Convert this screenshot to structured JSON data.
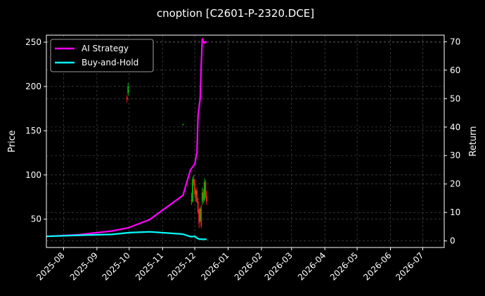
{
  "chart_data": {
    "type": "line",
    "title": "cnoption [C2601-P-2320.DCE]",
    "ylabel": "Price",
    "ylabel_right": "Return",
    "x_ticks": [
      "2025-08",
      "2025-09",
      "2025-10",
      "2025-11",
      "2025-12",
      "2026-01",
      "2026-02",
      "2026-03",
      "2026-04",
      "2026-05",
      "2026-06",
      "2026-07"
    ],
    "x_range": [
      "2025-07-16",
      "2026-07-21"
    ],
    "ylim_left": [
      18,
      258
    ],
    "y_ticks_left": [
      50,
      100,
      150,
      200,
      250
    ],
    "ylim_right": [
      -2.3,
      72.3
    ],
    "y_ticks_right": [
      0,
      10,
      20,
      30,
      40,
      50,
      60,
      70
    ],
    "grid": true,
    "legend_position": "top-left",
    "colors": {
      "up": "#00c000",
      "down": "#ff2020",
      "ai": "#ff00ff",
      "bh": "#00ffff",
      "grid": "#555555"
    },
    "series": [
      {
        "name": "AI Strategy",
        "axis": "right",
        "color": "#ff00ff",
        "points": [
          [
            "2025-07-16",
            1.6
          ],
          [
            "2025-08-15",
            2.2
          ],
          [
            "2025-09-15",
            3.5
          ],
          [
            "2025-09-30",
            4.6
          ],
          [
            "2025-10-20",
            7.5
          ],
          [
            "2025-11-20",
            16.0
          ],
          [
            "2025-11-27",
            25.0
          ],
          [
            "2025-12-01",
            27.0
          ],
          [
            "2025-12-03",
            31.0
          ],
          [
            "2025-12-04",
            44.0
          ],
          [
            "2025-12-06",
            50.0
          ],
          [
            "2025-12-07",
            62.0
          ],
          [
            "2025-12-08",
            71.0
          ],
          [
            "2025-12-09",
            70.0
          ],
          [
            "2025-12-10",
            69.5
          ],
          [
            "2025-12-11",
            70.0
          ],
          [
            "2025-12-12",
            69.8
          ]
        ]
      },
      {
        "name": "Buy-and-Hold",
        "axis": "right",
        "color": "#00ffff",
        "points": [
          [
            "2025-07-16",
            1.6
          ],
          [
            "2025-08-15",
            2.0
          ],
          [
            "2025-09-15",
            2.3
          ],
          [
            "2025-10-01",
            2.9
          ],
          [
            "2025-10-20",
            3.2
          ],
          [
            "2025-11-20",
            2.4
          ],
          [
            "2025-11-27",
            1.5
          ],
          [
            "2025-12-01",
            1.6
          ],
          [
            "2025-12-04",
            0.8
          ],
          [
            "2025-12-07",
            0.6
          ],
          [
            "2025-12-12",
            0.6
          ]
        ]
      }
    ],
    "candles": [
      {
        "date": "2025-09-29",
        "open": 188,
        "high": 190,
        "low": 182,
        "close": 185
      },
      {
        "date": "2025-09-30",
        "open": 192,
        "high": 204,
        "low": 190,
        "close": 200
      },
      {
        "date": "2025-11-20",
        "open": 157,
        "high": 158,
        "low": 156,
        "close": 157
      },
      {
        "date": "2025-11-28",
        "open": 72,
        "high": 80,
        "low": 66,
        "close": 70
      },
      {
        "date": "2025-11-29",
        "open": 70,
        "high": 98,
        "low": 69,
        "close": 95
      },
      {
        "date": "2025-11-30",
        "open": 95,
        "high": 100,
        "low": 88,
        "close": 90
      },
      {
        "date": "2025-12-01",
        "open": 90,
        "high": 95,
        "low": 74,
        "close": 78
      },
      {
        "date": "2025-12-02",
        "open": 78,
        "high": 84,
        "low": 70,
        "close": 82
      },
      {
        "date": "2025-12-03",
        "open": 82,
        "high": 86,
        "low": 68,
        "close": 70
      },
      {
        "date": "2025-12-04",
        "open": 70,
        "high": 74,
        "low": 56,
        "close": 58
      },
      {
        "date": "2025-12-05",
        "open": 60,
        "high": 62,
        "low": 40,
        "close": 45
      },
      {
        "date": "2025-12-06",
        "open": 48,
        "high": 64,
        "low": 47,
        "close": 62
      },
      {
        "date": "2025-12-07",
        "open": 62,
        "high": 66,
        "low": 40,
        "close": 42
      },
      {
        "date": "2025-12-08",
        "open": 70,
        "high": 86,
        "low": 66,
        "close": 80
      },
      {
        "date": "2025-12-09",
        "open": 80,
        "high": 84,
        "low": 68,
        "close": 72
      },
      {
        "date": "2025-12-10",
        "open": 72,
        "high": 96,
        "low": 70,
        "close": 92
      },
      {
        "date": "2025-12-11",
        "open": 92,
        "high": 94,
        "low": 74,
        "close": 76
      },
      {
        "date": "2025-12-12",
        "open": 76,
        "high": 82,
        "low": 66,
        "close": 70
      }
    ]
  }
}
